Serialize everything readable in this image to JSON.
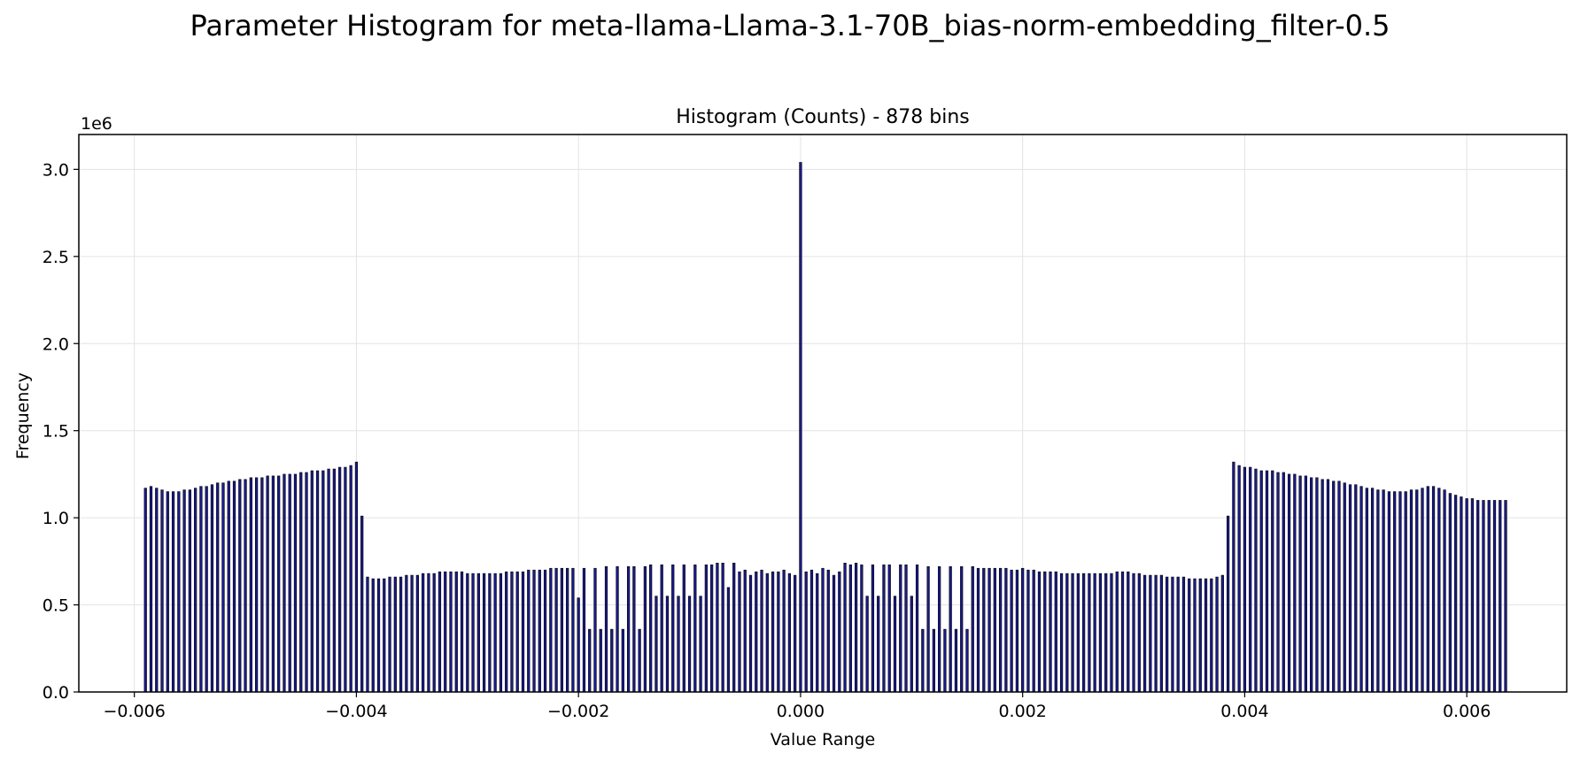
{
  "figure": {
    "suptitle": "Parameter Histogram for meta-llama-Llama-3.1-70B_bias-norm-embedding_filter-0.5"
  },
  "chart_data": {
    "type": "bar",
    "title": "Histogram (Counts) - 878 bins",
    "xlabel": "Value Range",
    "ylabel": "Frequency",
    "y_multiplier_label": "1e6",
    "n_bins": 878,
    "xlim": [
      -0.0065,
      0.0069
    ],
    "ylim": [
      0,
      3.2
    ],
    "x_ticks": [
      -0.006,
      -0.004,
      -0.002,
      0.0,
      0.002,
      0.004,
      0.006
    ],
    "x_tick_labels": [
      "−0.006",
      "−0.004",
      "−0.002",
      "0.000",
      "0.002",
      "0.004",
      "0.006"
    ],
    "y_ticks": [
      0.0,
      0.5,
      1.0,
      1.5,
      2.0,
      2.5,
      3.0
    ],
    "y_tick_labels": [
      "0.0",
      "0.5",
      "1.0",
      "1.5",
      "2.0",
      "2.5",
      "3.0"
    ],
    "grid": true,
    "bar_color": "#1a1a8c",
    "bar_edge_color": "#000000",
    "values_note": "values in units of 1e6",
    "x": [
      -0.0059,
      -0.00585,
      -0.0058,
      -0.00575,
      -0.0057,
      -0.00565,
      -0.0056,
      -0.00555,
      -0.0055,
      -0.00545,
      -0.0054,
      -0.00535,
      -0.0053,
      -0.00525,
      -0.0052,
      -0.00515,
      -0.0051,
      -0.00505,
      -0.005,
      -0.00495,
      -0.0049,
      -0.00485,
      -0.0048,
      -0.00475,
      -0.0047,
      -0.00465,
      -0.0046,
      -0.00455,
      -0.0045,
      -0.00445,
      -0.0044,
      -0.00435,
      -0.0043,
      -0.00425,
      -0.0042,
      -0.00415,
      -0.0041,
      -0.00405,
      -0.004,
      -0.00395,
      -0.0039,
      -0.00385,
      -0.0038,
      -0.00375,
      -0.0037,
      -0.00365,
      -0.0036,
      -0.00355,
      -0.0035,
      -0.00345,
      -0.0034,
      -0.00335,
      -0.0033,
      -0.00325,
      -0.0032,
      -0.00315,
      -0.0031,
      -0.00305,
      -0.003,
      -0.00295,
      -0.0029,
      -0.00285,
      -0.0028,
      -0.00275,
      -0.0027,
      -0.00265,
      -0.0026,
      -0.00255,
      -0.0025,
      -0.00245,
      -0.0024,
      -0.00235,
      -0.0023,
      -0.00225,
      -0.0022,
      -0.00215,
      -0.0021,
      -0.00205,
      -0.002,
      -0.00195,
      -0.0019,
      -0.00185,
      -0.0018,
      -0.00175,
      -0.0017,
      -0.00165,
      -0.0016,
      -0.00155,
      -0.0015,
      -0.00145,
      -0.0014,
      -0.00135,
      -0.0013,
      -0.00125,
      -0.0012,
      -0.00115,
      -0.0011,
      -0.00105,
      -0.001,
      -0.00095,
      -0.0009,
      -0.00085,
      -0.0008,
      -0.00075,
      -0.0007,
      -0.00065,
      -0.0006,
      -0.00055,
      -0.0005,
      -0.00045,
      -0.0004,
      -0.00035,
      -0.0003,
      -0.00025,
      -0.0002,
      -0.00015,
      -0.0001,
      -5e-05,
      0.0,
      5e-05,
      0.0001,
      0.00015,
      0.0002,
      0.00025,
      0.0003,
      0.00035,
      0.0004,
      0.00045,
      0.0005,
      0.00055,
      0.0006,
      0.00065,
      0.0007,
      0.00075,
      0.0008,
      0.00085,
      0.0009,
      0.00095,
      0.001,
      0.00105,
      0.0011,
      0.00115,
      0.0012,
      0.00125,
      0.0013,
      0.00135,
      0.0014,
      0.00145,
      0.0015,
      0.00155,
      0.0016,
      0.00165,
      0.0017,
      0.00175,
      0.0018,
      0.00185,
      0.0019,
      0.00195,
      0.002,
      0.00205,
      0.0021,
      0.00215,
      0.0022,
      0.00225,
      0.0023,
      0.00235,
      0.0024,
      0.00245,
      0.0025,
      0.00255,
      0.0026,
      0.00265,
      0.0027,
      0.00275,
      0.0028,
      0.00285,
      0.0029,
      0.00295,
      0.003,
      0.00305,
      0.0031,
      0.00315,
      0.0032,
      0.00325,
      0.0033,
      0.00335,
      0.0034,
      0.00345,
      0.0035,
      0.00355,
      0.0036,
      0.00365,
      0.0037,
      0.00375,
      0.0038,
      0.00385,
      0.0039,
      0.00395,
      0.004,
      0.00405,
      0.0041,
      0.00415,
      0.0042,
      0.00425,
      0.0043,
      0.00435,
      0.0044,
      0.00445,
      0.0045,
      0.00455,
      0.0046,
      0.00465,
      0.0047,
      0.00475,
      0.0048,
      0.00485,
      0.0049,
      0.00495,
      0.005,
      0.00505,
      0.0051,
      0.00515,
      0.0052,
      0.00525,
      0.0053,
      0.00535,
      0.0054,
      0.00545,
      0.0055,
      0.00555,
      0.0056,
      0.00565,
      0.0057,
      0.00575,
      0.0058,
      0.00585,
      0.0059,
      0.00595,
      0.006,
      0.00605,
      0.0061,
      0.00615,
      0.0062,
      0.00625,
      0.0063,
      0.00635
    ],
    "values": [
      1.17,
      1.18,
      1.17,
      1.16,
      1.15,
      1.15,
      1.15,
      1.16,
      1.16,
      1.17,
      1.18,
      1.18,
      1.19,
      1.2,
      1.2,
      1.21,
      1.21,
      1.22,
      1.22,
      1.23,
      1.23,
      1.23,
      1.24,
      1.24,
      1.24,
      1.25,
      1.25,
      1.25,
      1.26,
      1.26,
      1.27,
      1.27,
      1.27,
      1.28,
      1.28,
      1.29,
      1.29,
      1.3,
      1.32,
      1.01,
      0.66,
      0.65,
      0.65,
      0.65,
      0.66,
      0.66,
      0.66,
      0.67,
      0.67,
      0.67,
      0.68,
      0.68,
      0.68,
      0.69,
      0.69,
      0.69,
      0.69,
      0.69,
      0.68,
      0.68,
      0.68,
      0.68,
      0.68,
      0.68,
      0.68,
      0.69,
      0.69,
      0.69,
      0.69,
      0.7,
      0.7,
      0.7,
      0.7,
      0.71,
      0.71,
      0.71,
      0.71,
      0.71,
      0.54,
      0.71,
      0.36,
      0.71,
      0.36,
      0.72,
      0.36,
      0.72,
      0.36,
      0.72,
      0.72,
      0.36,
      0.72,
      0.73,
      0.55,
      0.73,
      0.55,
      0.73,
      0.55,
      0.73,
      0.55,
      0.73,
      0.55,
      0.73,
      0.73,
      0.74,
      0.74,
      0.6,
      0.74,
      0.69,
      0.7,
      0.67,
      0.69,
      0.7,
      0.68,
      0.69,
      0.69,
      0.7,
      0.68,
      0.67,
      3.04,
      0.69,
      0.7,
      0.68,
      0.71,
      0.7,
      0.67,
      0.69,
      0.74,
      0.73,
      0.74,
      0.73,
      0.55,
      0.73,
      0.55,
      0.73,
      0.73,
      0.55,
      0.73,
      0.73,
      0.55,
      0.73,
      0.36,
      0.72,
      0.36,
      0.72,
      0.36,
      0.72,
      0.36,
      0.72,
      0.36,
      0.72,
      0.71,
      0.71,
      0.71,
      0.71,
      0.71,
      0.71,
      0.7,
      0.7,
      0.71,
      0.7,
      0.7,
      0.69,
      0.69,
      0.69,
      0.69,
      0.68,
      0.68,
      0.68,
      0.68,
      0.68,
      0.68,
      0.68,
      0.68,
      0.68,
      0.68,
      0.69,
      0.69,
      0.69,
      0.68,
      0.68,
      0.67,
      0.67,
      0.67,
      0.67,
      0.66,
      0.66,
      0.66,
      0.66,
      0.65,
      0.65,
      0.65,
      0.65,
      0.65,
      0.66,
      0.67,
      1.01,
      1.32,
      1.3,
      1.29,
      1.29,
      1.28,
      1.27,
      1.27,
      1.27,
      1.26,
      1.26,
      1.25,
      1.25,
      1.24,
      1.24,
      1.23,
      1.23,
      1.22,
      1.22,
      1.21,
      1.21,
      1.2,
      1.19,
      1.19,
      1.18,
      1.17,
      1.17,
      1.16,
      1.16,
      1.15,
      1.15,
      1.15,
      1.15,
      1.16,
      1.16,
      1.17,
      1.18,
      1.18,
      1.17,
      1.16,
      1.14,
      1.13,
      1.12,
      1.11,
      1.11,
      1.1,
      1.1,
      1.1,
      1.1,
      1.1,
      1.1
    ]
  }
}
